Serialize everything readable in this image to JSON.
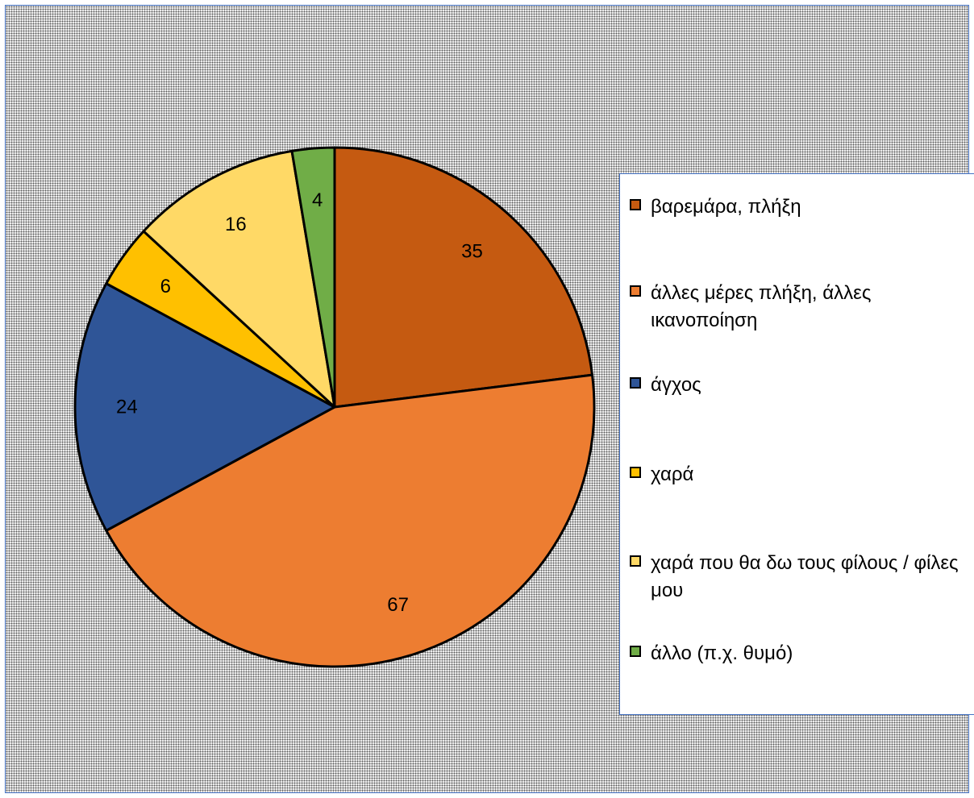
{
  "chart_data": {
    "type": "pie",
    "title": "",
    "slices": [
      {
        "label": "βαρεμάρα, πλήξη",
        "value": 35,
        "color": "#c55a11"
      },
      {
        "label": "άλλες μέρες πλήξη, άλλες ικανοποίηση",
        "value": 67,
        "color": "#ed7d31"
      },
      {
        "label": "άγχος",
        "value": 24,
        "color": "#2f5597"
      },
      {
        "label": "χαρά",
        "value": 6,
        "color": "#ffc000"
      },
      {
        "label": "χαρά που θα δω τους φίλους / φίλες μου",
        "value": 16,
        "color": "#ffd966"
      },
      {
        "label": "άλλο (π.χ. θυμό)",
        "value": 4,
        "color": "#70ad47"
      }
    ],
    "start_angle_deg": 0,
    "direction": "clockwise",
    "data_labels": "inside-outer",
    "legend_position": "right"
  }
}
